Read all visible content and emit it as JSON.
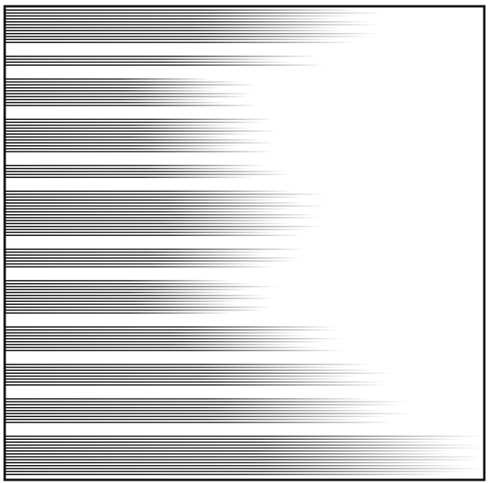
{
  "artwork": {
    "subject": "fading-horizontal-line-pattern",
    "ink_color": "#111111",
    "paper_color": "#ffffff",
    "frame_color": "#111111",
    "line_groups": [
      {
        "count": 12,
        "reach": 0.74
      },
      {
        "count": 4,
        "reach": 0.62
      },
      {
        "count": 10,
        "reach": 0.48
      },
      {
        "count": 12,
        "reach": 0.52
      },
      {
        "count": 5,
        "reach": 0.56
      },
      {
        "count": 16,
        "reach": 0.62
      },
      {
        "count": 7,
        "reach": 0.58
      },
      {
        "count": 12,
        "reach": 0.52
      },
      {
        "count": 9,
        "reach": 0.66
      },
      {
        "count": 8,
        "reach": 0.76
      },
      {
        "count": 9,
        "reach": 0.8
      },
      {
        "count": 14,
        "reach": 0.97
      }
    ]
  }
}
